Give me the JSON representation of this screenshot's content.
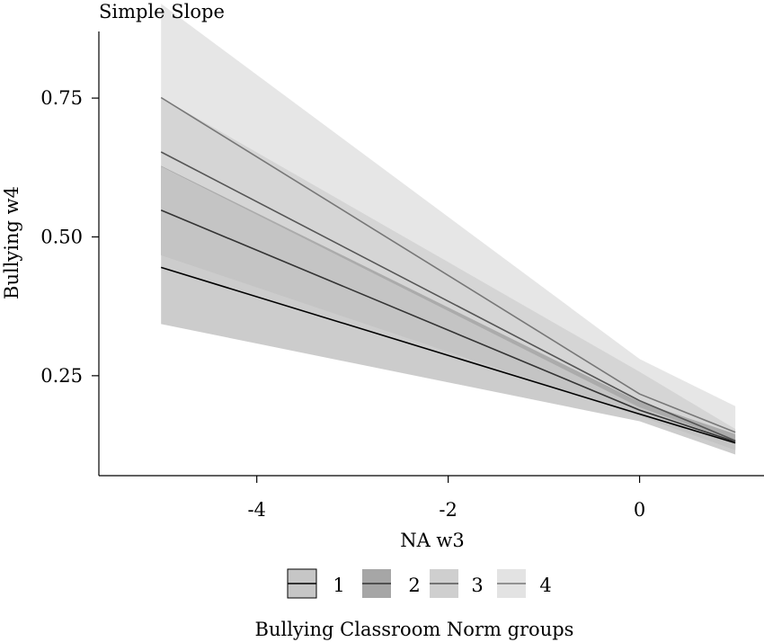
{
  "chart_data": {
    "type": "line",
    "title": "Simple Slope",
    "xlabel": "NA w3",
    "ylabel": "Bullying w4",
    "xlim": [
      -5.65,
      1.3
    ],
    "ylim": [
      0.07,
      0.87
    ],
    "xticks": [
      {
        "value": -4,
        "label": "-4"
      },
      {
        "value": -2,
        "label": "-2"
      },
      {
        "value": 0,
        "label": "0"
      }
    ],
    "yticks": [
      {
        "value": 0.25,
        "label": "0.25"
      },
      {
        "value": 0.5,
        "label": "0.50"
      },
      {
        "value": 0.75,
        "label": "0.75"
      }
    ],
    "grid": false,
    "legend_position": "bottom",
    "legend_title": "Bullying Classroom Norm groups",
    "series": [
      {
        "name": "1",
        "x": [
          -5,
          0,
          1
        ],
        "y": [
          0.445,
          0.181,
          0.129
        ],
        "lower": [
          0.343,
          0.168,
          0.108
        ],
        "upper": [
          0.627,
          0.193,
          0.132
        ],
        "line_color": "#000000",
        "band_color": "#c6c6c6",
        "band_opacity": 0.9
      },
      {
        "name": "2",
        "x": [
          -5,
          0,
          1
        ],
        "y": [
          0.548,
          0.188,
          0.131
        ],
        "lower": [
          0.467,
          0.177,
          0.116
        ],
        "upper": [
          0.628,
          0.203,
          0.145
        ],
        "line_color": "#333333",
        "band_color": "#a6a6a6",
        "band_opacity": 0.9
      },
      {
        "name": "3",
        "x": [
          -5,
          0,
          1
        ],
        "y": [
          0.653,
          0.205,
          0.133
        ],
        "lower": [
          0.467,
          0.185,
          0.118
        ],
        "upper": [
          0.751,
          0.257,
          0.154
        ],
        "line_color": "#555555",
        "band_color": "#cfcfcf",
        "band_opacity": 0.75
      },
      {
        "name": "4",
        "x": [
          -5,
          0,
          1
        ],
        "y": [
          0.751,
          0.217,
          0.148
        ],
        "lower": [
          0.467,
          0.19,
          0.12
        ],
        "upper": [
          0.92,
          0.28,
          0.195
        ],
        "line_color": "#777777",
        "band_color": "#e3e3e3",
        "band_opacity": 0.9
      }
    ]
  }
}
